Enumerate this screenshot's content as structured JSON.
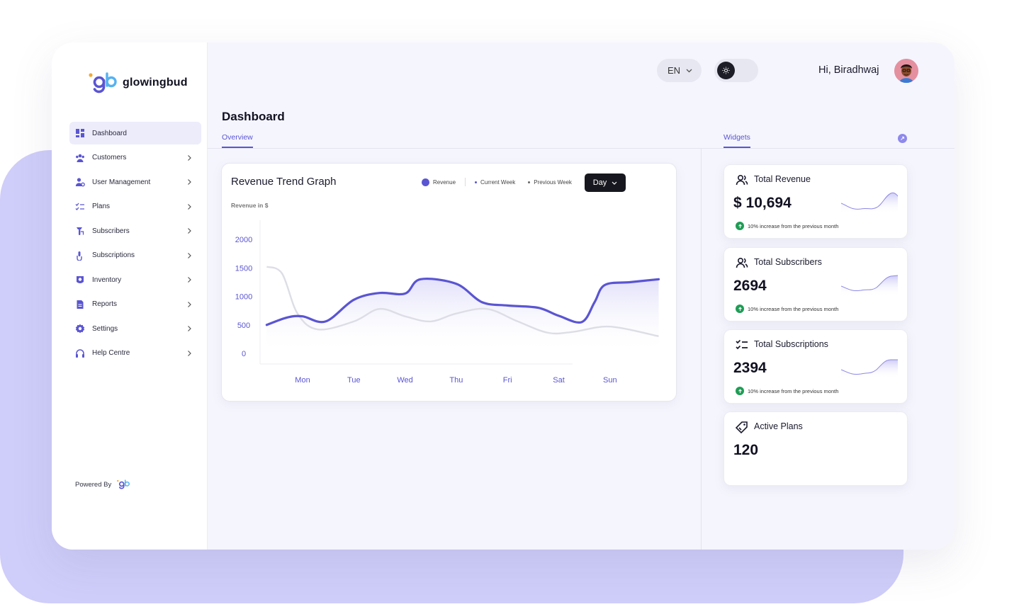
{
  "brand": {
    "name": "glowingbud"
  },
  "sidebar": {
    "items": [
      {
        "label": "Dashboard",
        "icon": "dashboard-icon",
        "active": true,
        "has_submenu": false
      },
      {
        "label": "Customers",
        "icon": "customers-icon",
        "active": false,
        "has_submenu": true
      },
      {
        "label": "User Management",
        "icon": "user-management-icon",
        "active": false,
        "has_submenu": true
      },
      {
        "label": "Plans",
        "icon": "plans-icon",
        "active": false,
        "has_submenu": true
      },
      {
        "label": "Subscribers",
        "icon": "subscribers-icon",
        "active": false,
        "has_submenu": true
      },
      {
        "label": "Subscriptions",
        "icon": "subscriptions-icon",
        "active": false,
        "has_submenu": true
      },
      {
        "label": "Inventory",
        "icon": "inventory-icon",
        "active": false,
        "has_submenu": true
      },
      {
        "label": "Reports",
        "icon": "reports-icon",
        "active": false,
        "has_submenu": true
      },
      {
        "label": "Settings",
        "icon": "settings-icon",
        "active": false,
        "has_submenu": true
      },
      {
        "label": "Help Centre",
        "icon": "headset-icon",
        "active": false,
        "has_submenu": true
      }
    ],
    "powered_by": "Powered By"
  },
  "topbar": {
    "language": "EN",
    "theme_toggle": "sun-icon",
    "greeting": "Hi, Biradhwaj"
  },
  "page": {
    "title": "Dashboard",
    "tabs": {
      "overview": "Overview",
      "widgets": "Widgets"
    }
  },
  "chart_card": {
    "title": "Revenue Trend Graph",
    "legend": {
      "revenue": "Revenue",
      "current_week": "Current Week",
      "previous_week": "Previous Week"
    },
    "period_button": "Day",
    "y_label": "Revenue in $"
  },
  "chart_data": {
    "type": "line",
    "title": "Revenue Trend Graph",
    "ylabel": "Revenue in $",
    "xlabel": "",
    "categories": [
      "Mon",
      "Tue",
      "Wed",
      "Thu",
      "Fri",
      "Sat",
      "Sun"
    ],
    "y_ticks": [
      0,
      500,
      1000,
      1500,
      2000
    ],
    "ylim": [
      0,
      2250
    ],
    "grid": false,
    "legend_position": "top",
    "series": [
      {
        "name": "Current Week",
        "color": "#5a55d2",
        "x": [
          -0.7,
          -0.3,
          0.0,
          0.45,
          1.0,
          1.5,
          2.0,
          2.3,
          3.0,
          3.5,
          4.0,
          4.6,
          5.0,
          5.45,
          5.7,
          5.9,
          6.4,
          6.95
        ],
        "y": [
          500,
          630,
          650,
          560,
          940,
          1060,
          1050,
          1300,
          1220,
          900,
          840,
          800,
          660,
          550,
          900,
          1200,
          1250,
          1300
        ]
      },
      {
        "name": "Previous Week",
        "color": "#dddde6",
        "x": [
          -0.7,
          -0.4,
          -0.1,
          0.3,
          1.0,
          1.5,
          2.0,
          2.5,
          3.0,
          3.6,
          4.2,
          4.8,
          5.3,
          6.0,
          6.95
        ],
        "y": [
          1520,
          1400,
          700,
          420,
          560,
          780,
          650,
          560,
          700,
          780,
          560,
          360,
          380,
          470,
          300
        ]
      }
    ]
  },
  "stats": [
    {
      "title": "Total Revenue",
      "icon": "users-icon",
      "value": "$ 10,694",
      "note": "10% increase from the previous month",
      "show_note": true,
      "trend": "up"
    },
    {
      "title": "Total Subscribers",
      "icon": "users-icon",
      "value": "2694",
      "note": "10% increase from the previous month",
      "show_note": true,
      "trend": "up"
    },
    {
      "title": "Total Subscriptions",
      "icon": "checklist-icon",
      "value": "2394",
      "note": "10% increase from the previous month",
      "show_note": true,
      "trend": "up"
    },
    {
      "title": "Active Plans",
      "icon": "tag-icon",
      "value": "120",
      "note": "",
      "show_note": false,
      "trend": ""
    }
  ],
  "colors": {
    "accent": "#5a55d2",
    "backdrop": "#cfcdf9",
    "canvas": "#f5f5fd",
    "success": "#1f9d55",
    "dark_button": "#17171f"
  }
}
